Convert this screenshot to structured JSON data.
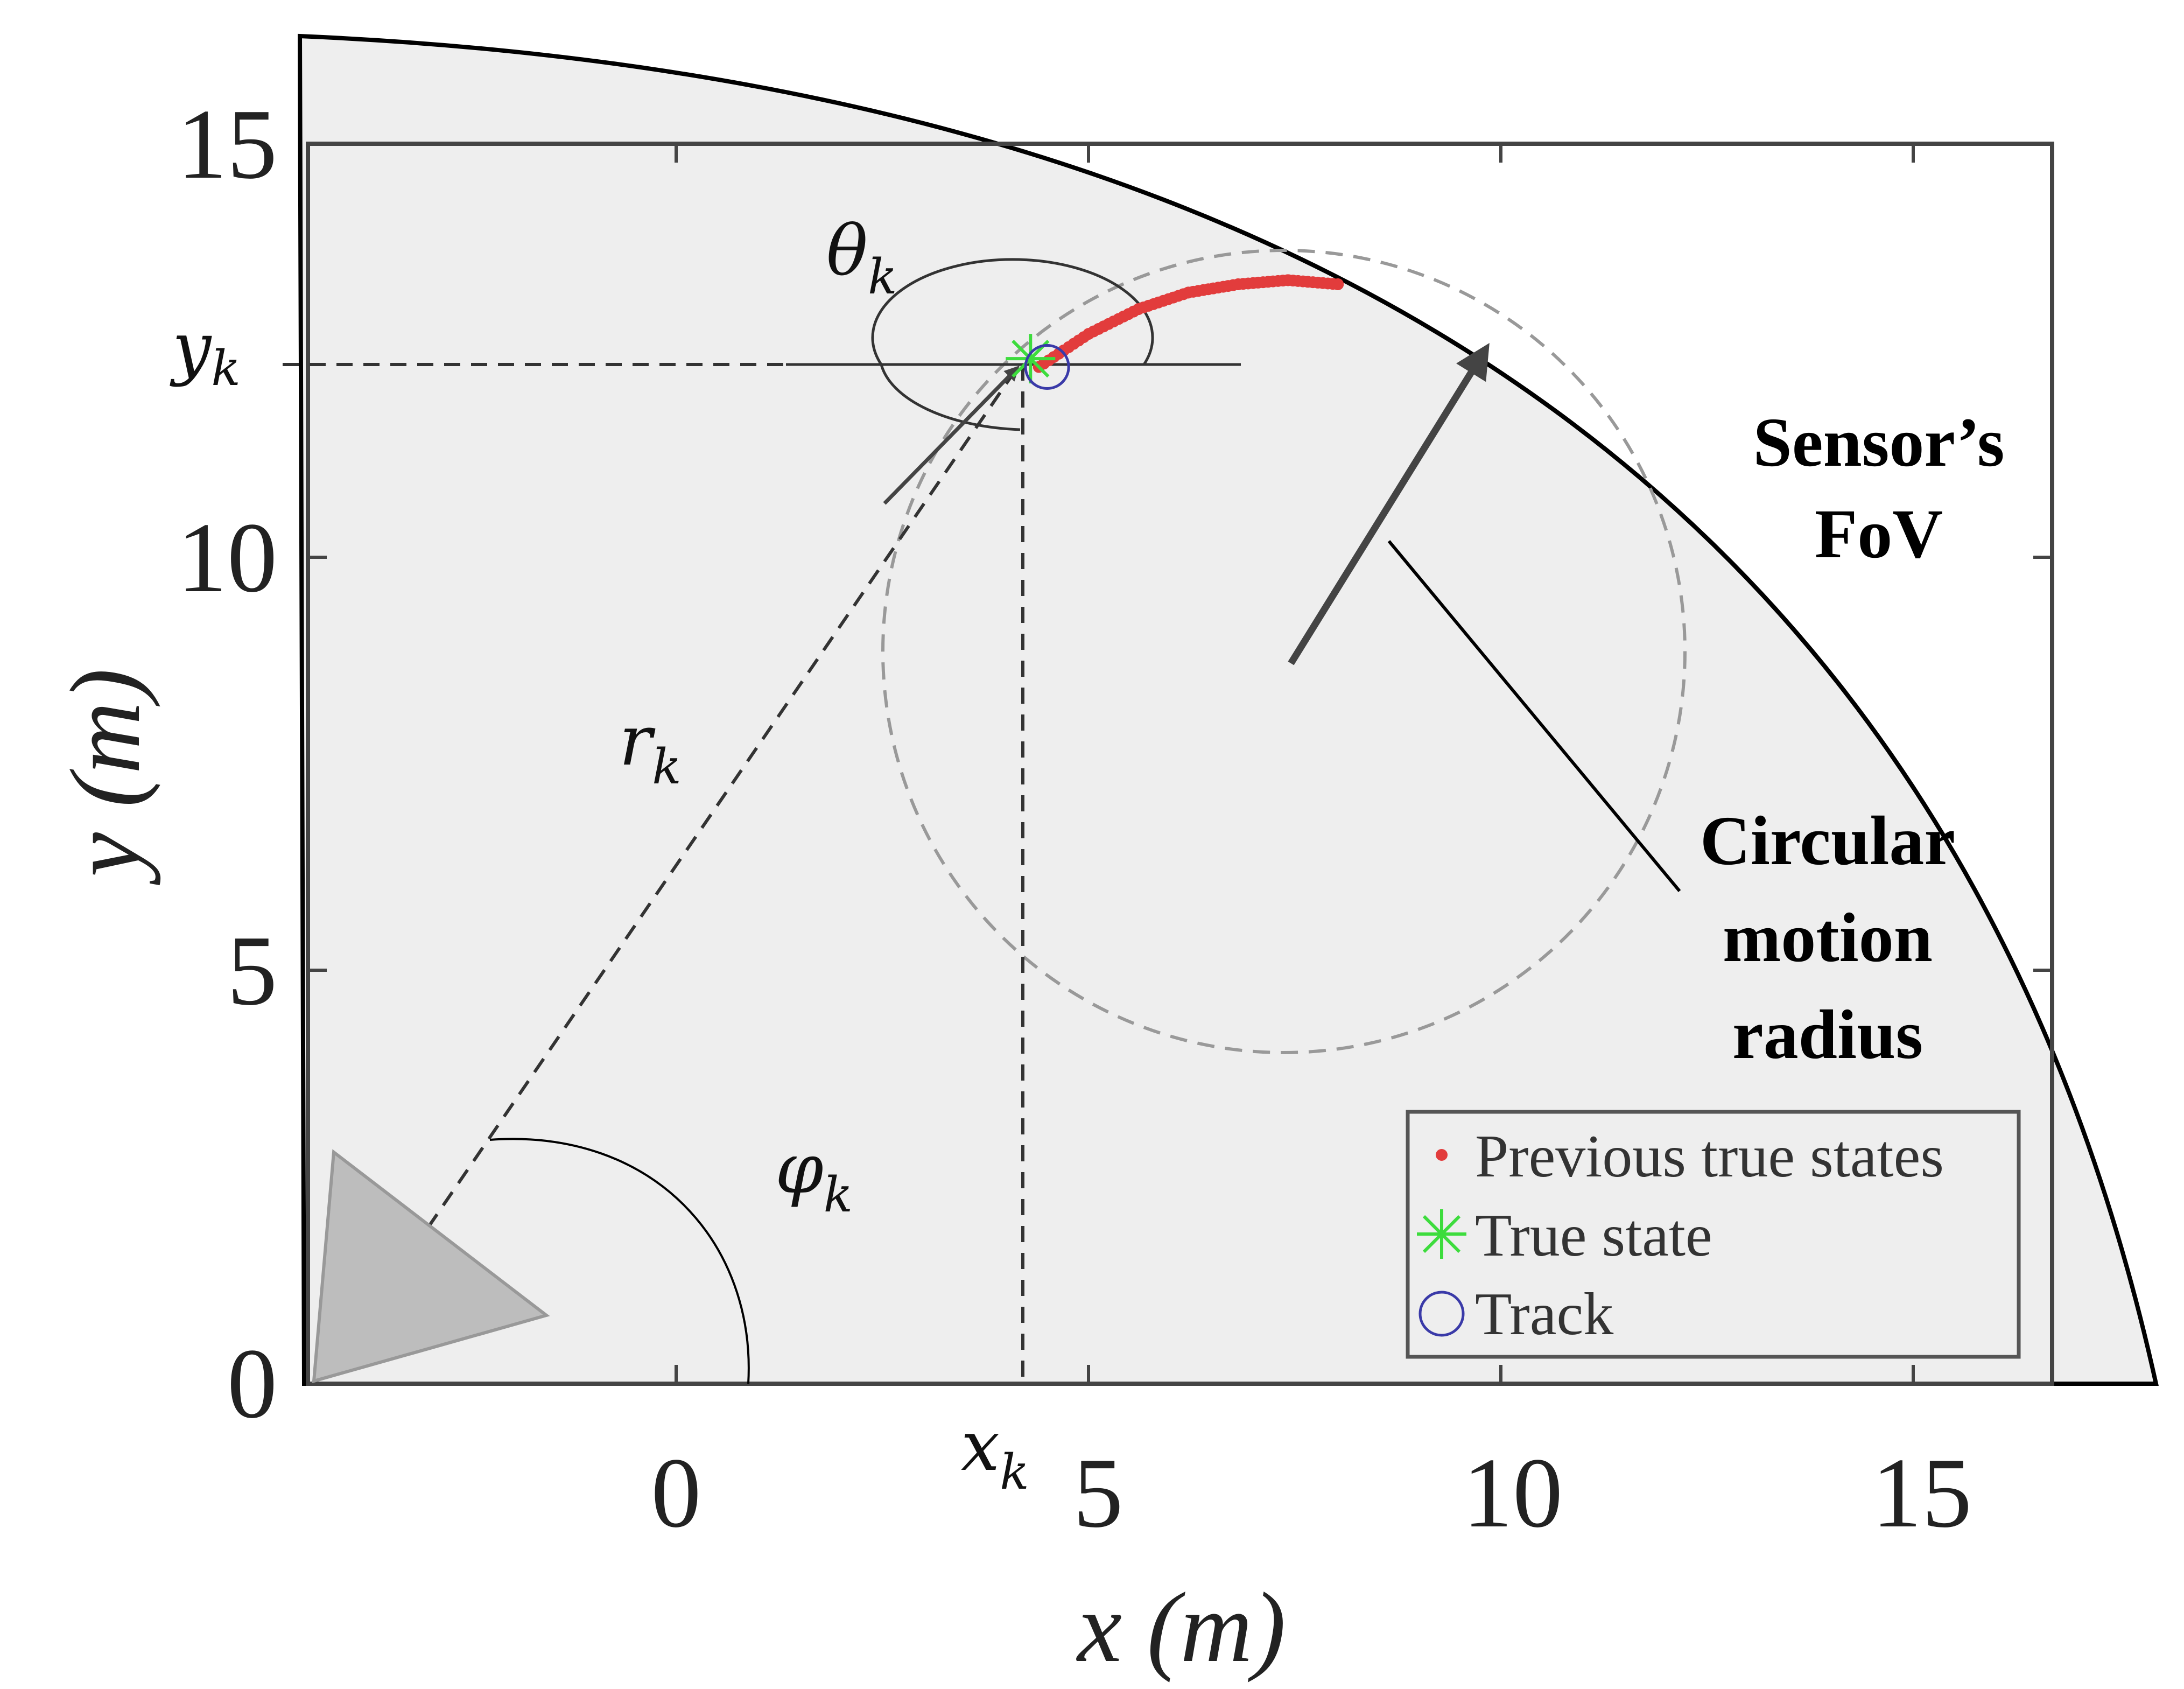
{
  "axes": {
    "xlabel": "x (m)",
    "ylabel": "y (m)",
    "xticks": [
      "0",
      "5",
      "10",
      "15"
    ],
    "yticks": [
      "0",
      "5",
      "10",
      "15"
    ]
  },
  "symbols": {
    "theta": "θ",
    "theta_sub": "k",
    "y": "y",
    "y_sub": "k",
    "x": "x",
    "x_sub": "k",
    "r": "r",
    "r_sub": "k",
    "phi": "φ",
    "phi_sub": "k"
  },
  "annotations": {
    "fov_line1": "Sensor’s",
    "fov_line2": "FoV",
    "radius_line1": "Circular",
    "radius_line2": "motion",
    "radius_line3": "radius"
  },
  "legend": {
    "items": [
      "Previous true states",
      "True state",
      "Track"
    ]
  },
  "colors": {
    "fov_fill": "#eeeeee",
    "previous_states": "#e23c3c",
    "true_state": "#3ddc3d",
    "track": "#3a3aa8",
    "sensor": "#bdbdbd"
  },
  "chart_data": {
    "type": "scatter",
    "xlabel": "x (m)",
    "ylabel": "y (m)",
    "xlim": [
      -4.5,
      16.5
    ],
    "ylim": [
      0,
      15
    ],
    "series": [
      {
        "name": "Previous true states",
        "x": [
          4.3,
          4.9,
          5.5,
          6.1,
          6.7,
          7.3,
          7.9
        ],
        "y": [
          12.3,
          12.7,
          13.0,
          13.2,
          13.3,
          13.35,
          13.3
        ]
      },
      {
        "name": "True state",
        "x": [
          4.2
        ],
        "y": [
          12.4
        ]
      },
      {
        "name": "Track",
        "x": [
          4.4
        ],
        "y": [
          12.3
        ]
      }
    ]
  }
}
